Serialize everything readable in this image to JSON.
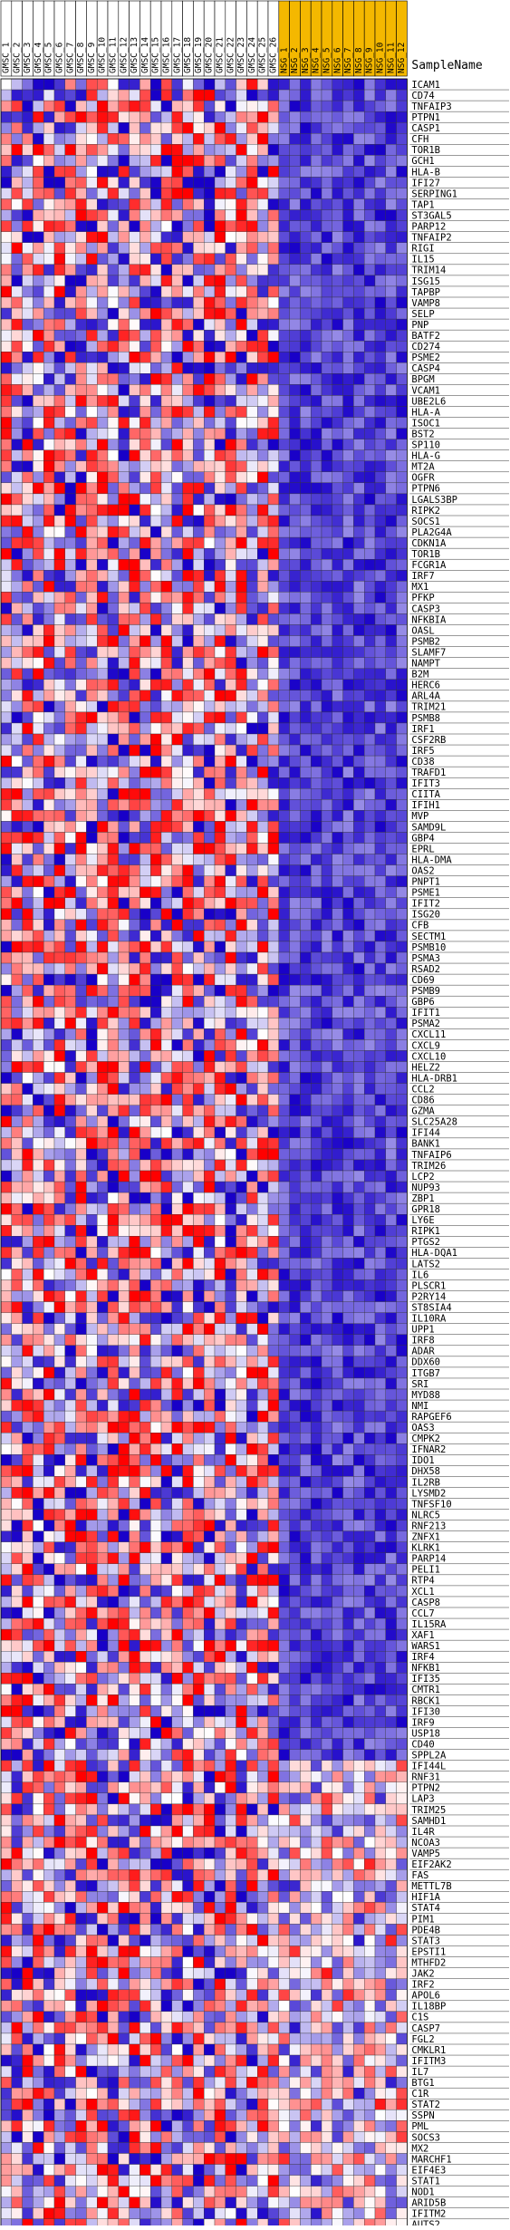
{
  "chart_data": {
    "type": "heatmap",
    "column_header_label": "SampleName",
    "group_colors": {
      "GMS": "#ffffff",
      "NSG": "#f4b800"
    },
    "cell_colors": {
      "high": "#ff0000",
      "mid": "#ffffff",
      "low": "#1800c8"
    },
    "columns": [
      "GMSC_1",
      "GMSC_2",
      "GMSC_3",
      "GMSC_4",
      "GMSC_5",
      "GMSC_6",
      "GMSC_7",
      "GMSC_8",
      "GMSC_9",
      "GMSC_10",
      "GMSC_11",
      "GMSC_12",
      "GMSC_13",
      "GMSC_14",
      "GMSC_15",
      "GMSC_16",
      "GMSC_17",
      "GMSC_18",
      "GMSC_19",
      "GMSC_20",
      "GMSC_21",
      "GMSC_22",
      "GMSC_23",
      "GMSC_24",
      "GMSC_25",
      "GMSC_26",
      "NSG_1",
      "NSG_2",
      "NSG_3",
      "NSG_4",
      "NSG_5",
      "NSG_6",
      "NSG_7",
      "NSG_8",
      "NSG_9",
      "NSG_10",
      "NSG_11",
      "NSG_12"
    ],
    "column_groups": [
      "GMS",
      "GMS",
      "GMS",
      "GMS",
      "GMS",
      "GMS",
      "GMS",
      "GMS",
      "GMS",
      "GMS",
      "GMS",
      "GMS",
      "GMS",
      "GMS",
      "GMS",
      "GMS",
      "GMS",
      "GMS",
      "GMS",
      "GMS",
      "GMS",
      "GMS",
      "GMS",
      "GMS",
      "GMS",
      "GMS",
      "NSG",
      "NSG",
      "NSG",
      "NSG",
      "NSG",
      "NSG",
      "NSG",
      "NSG",
      "NSG",
      "NSG",
      "NSG",
      "NSG"
    ],
    "rows": [
      "ICAM1",
      "CD74",
      "TNFAIP3",
      "PTPN1",
      "CASP1",
      "CFH",
      "TOR1B",
      "GCH1",
      "HLA-B",
      "IFI27",
      "SERPING1",
      "TAP1",
      "ST3GAL5",
      "PARP12",
      "TNFAIP2",
      "RIGI",
      "IL15",
      "TRIM14",
      "ISG15",
      "TAPBP",
      "VAMP8",
      "SELP",
      "PNP",
      "BATF2",
      "CD274",
      "PSME2",
      "CASP4",
      "BPGM",
      "VCAM1",
      "UBE2L6",
      "HLA-A",
      "ISOC1",
      "BST2",
      "SP110",
      "HLA-G",
      "MT2A",
      "OGFR",
      "PTPN6",
      "LGALS3BP",
      "RIPK2",
      "SOCS1",
      "PLA2G4A",
      "CDKN1A",
      "TOR1B",
      "FCGR1A",
      "IRF7",
      "MX1",
      "PFKP",
      "CASP3",
      "NFKBIA",
      "OASL",
      "PSMB2",
      "SLAMF7",
      "NAMPT",
      "B2M",
      "HERC6",
      "ARL4A",
      "TRIM21",
      "PSMB8",
      "IRF1",
      "CSF2RB",
      "IRF5",
      "CD38",
      "TRAFD1",
      "IFIT3",
      "CIITA",
      "IFIH1",
      "MVP",
      "SAMD9L",
      "GBP4",
      "EPRL",
      "HLA-DMA",
      "OAS2",
      "PNPT1",
      "PSME1",
      "IFIT2",
      "ISG20",
      "CFB",
      "SECTM1",
      "PSMB10",
      "PSMA3",
      "RSAD2",
      "CD69",
      "PSMB9",
      "GBP6",
      "IFIT1",
      "PSMA2",
      "CXCL11",
      "CXCL9",
      "CXCL10",
      "HELZ2",
      "HLA-DRB1",
      "CCL2",
      "CD86",
      "GZMA",
      "SLC25A28",
      "IFI44",
      "BANK1",
      "TNFAIP6",
      "TRIM26",
      "LCP2",
      "NUP93",
      "ZBP1",
      "GPR18",
      "LY6E",
      "RIPK1",
      "PTGS2",
      "HLA-DQA1",
      "LATS2",
      "IL6",
      "PLSCR1",
      "P2RY14",
      "ST8SIA4",
      "IL10RA",
      "UPP1",
      "IRF8",
      "ADAR",
      "DDX60",
      "ITGB7",
      "SRI",
      "MYD88",
      "NMI",
      "RAPGEF6",
      "OAS3",
      "CMPK2",
      "IFNAR2",
      "IDO1",
      "DHX58",
      "IL2RB",
      "LYSMD2",
      "TNFSF10",
      "NLRC5",
      "RNF213",
      "ZNFX1",
      "KLRK1",
      "PARP14",
      "PELI1",
      "RTP4",
      "XCL1",
      "CASP8",
      "CCL7",
      "IL15RA",
      "XAF1",
      "WARS1",
      "IRF4",
      "NFKB1",
      "IFI35",
      "CMTR1",
      "RBCK1",
      "IFI30",
      "IRF9",
      "USP18",
      "CD40",
      "SPPL2A",
      "IFI44L",
      "RNF31",
      "PTPN2",
      "LAP3",
      "TRIM25",
      "SAMHD1",
      "IL4R",
      "NCOA3",
      "VAMP5",
      "EIF2AK2",
      "FAS",
      "METTL7B",
      "HIF1A",
      "STAT4",
      "PIM1",
      "PDE4B",
      "STAT3",
      "EPSTI1",
      "MTHFD2",
      "JAK2",
      "IRF2",
      "APOL6",
      "IL18BP",
      "C1S",
      "CASP7",
      "FGL2",
      "CMKLR1",
      "IFITM3",
      "IL7",
      "BTG1",
      "C1R",
      "STAT2",
      "SSPN",
      "PML",
      "SOCS3",
      "MX2",
      "MARCHF1",
      "EIF4E3",
      "STAT1",
      "NOD1",
      "ARID5B",
      "IFITM2",
      "AUTS2"
    ],
    "values_seed": 20240517
  }
}
